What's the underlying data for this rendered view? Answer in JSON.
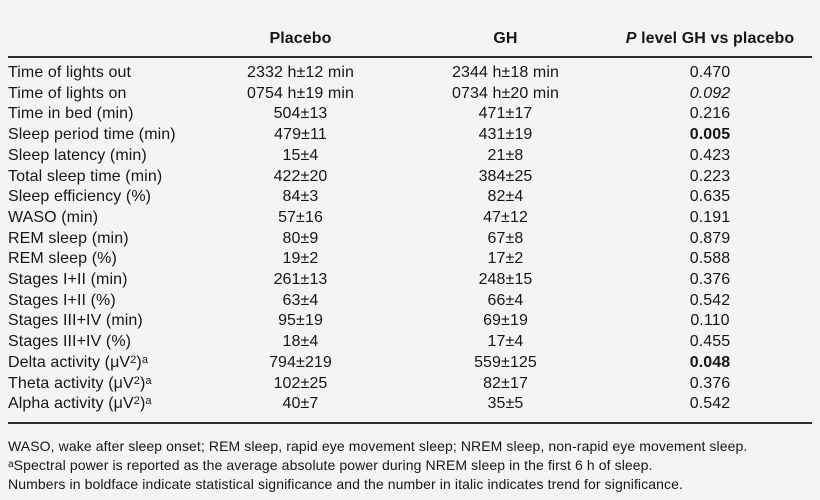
{
  "colors": {
    "background": "#f4f4f2",
    "text": "#161616",
    "rule": "#2e2e2e"
  },
  "table": {
    "header": {
      "parameter": "",
      "placebo": "Placebo",
      "gh": "GH",
      "p_prefix": "P",
      "p_rest": " level GH vs placebo"
    },
    "rows": [
      {
        "label": [
          {
            "t": "Time of lights out"
          }
        ],
        "placebo": "2332 h±12 min",
        "gh": "2344 h±18 min",
        "p": "0.470",
        "p_style": "normal"
      },
      {
        "label": [
          {
            "t": "Time of lights on"
          }
        ],
        "placebo": "0754 h±19 min",
        "gh": "0734 h±20 min",
        "p": "0.092",
        "p_style": "italic"
      },
      {
        "label": [
          {
            "t": "Time in bed (min)"
          }
        ],
        "placebo": "504±13",
        "gh": "471±17",
        "p": "0.216",
        "p_style": "normal"
      },
      {
        "label": [
          {
            "t": "Sleep period time (min)"
          }
        ],
        "placebo": "479±11",
        "gh": "431±19",
        "p": "0.005",
        "p_style": "bold"
      },
      {
        "label": [
          {
            "t": "Sleep latency (min)"
          }
        ],
        "placebo": "15±4",
        "gh": "21±8",
        "p": "0.423",
        "p_style": "normal"
      },
      {
        "label": [
          {
            "t": "Total sleep time (min)"
          }
        ],
        "placebo": "422±20",
        "gh": "384±25",
        "p": "0.223",
        "p_style": "normal"
      },
      {
        "label": [
          {
            "t": "Sleep efficiency (%)"
          }
        ],
        "placebo": "84±3",
        "gh": "82±4",
        "p": "0.635",
        "p_style": "normal"
      },
      {
        "label": [
          {
            "t": "WASO (min)"
          }
        ],
        "placebo": "57±16",
        "gh": "47±12",
        "p": "0.191",
        "p_style": "normal"
      },
      {
        "label": [
          {
            "t": "REM sleep (min)"
          }
        ],
        "placebo": "80±9",
        "gh": "67±8",
        "p": "0.879",
        "p_style": "normal"
      },
      {
        "label": [
          {
            "t": "REM sleep (%)"
          }
        ],
        "placebo": "19±2",
        "gh": "17±2",
        "p": "0.588",
        "p_style": "normal"
      },
      {
        "label": [
          {
            "t": "Stages I+II (min)"
          }
        ],
        "placebo": "261±13",
        "gh": "248±15",
        "p": "0.376",
        "p_style": "normal"
      },
      {
        "label": [
          {
            "t": "Stages I+II (%)"
          }
        ],
        "placebo": "63±4",
        "gh": "66±4",
        "p": "0.542",
        "p_style": "normal"
      },
      {
        "label": [
          {
            "t": "Stages III+IV (min)"
          }
        ],
        "placebo": "95±19",
        "gh": "69±19",
        "p": "0.110",
        "p_style": "normal"
      },
      {
        "label": [
          {
            "t": "Stages III+IV (%)"
          }
        ],
        "placebo": "18±4",
        "gh": "17±4",
        "p": "0.455",
        "p_style": "normal"
      },
      {
        "label": [
          {
            "t": "Delta activity (μV"
          },
          {
            "t": "2",
            "sup": true
          },
          {
            "t": ")"
          },
          {
            "t": "a",
            "sup": true
          }
        ],
        "placebo": "794±219",
        "gh": "559±125",
        "p": "0.048",
        "p_style": "bold"
      },
      {
        "label": [
          {
            "t": "Theta activity (μV"
          },
          {
            "t": "2",
            "sup": true
          },
          {
            "t": ")"
          },
          {
            "t": "a",
            "sup": true
          }
        ],
        "placebo": "102±25",
        "gh": "82±17",
        "p": "0.376",
        "p_style": "normal"
      },
      {
        "label": [
          {
            "t": "Alpha activity (μV"
          },
          {
            "t": "2",
            "sup": true
          },
          {
            "t": ")"
          },
          {
            "t": "a",
            "sup": true
          }
        ],
        "placebo": "40±7",
        "gh": "35±5",
        "p": "0.542",
        "p_style": "normal"
      }
    ]
  },
  "footnotes": [
    [
      {
        "t": "WASO, wake after sleep onset; REM sleep, rapid eye movement sleep; NREM sleep, non-rapid eye movement sleep."
      }
    ],
    [
      {
        "t": "a",
        "sup": true
      },
      {
        "t": "Spectral power is reported as the average absolute power during NREM sleep in the first 6 h of sleep."
      }
    ],
    [
      {
        "t": "Numbers in boldface indicate statistical significance and the number in italic indicates trend for significance."
      }
    ]
  ]
}
